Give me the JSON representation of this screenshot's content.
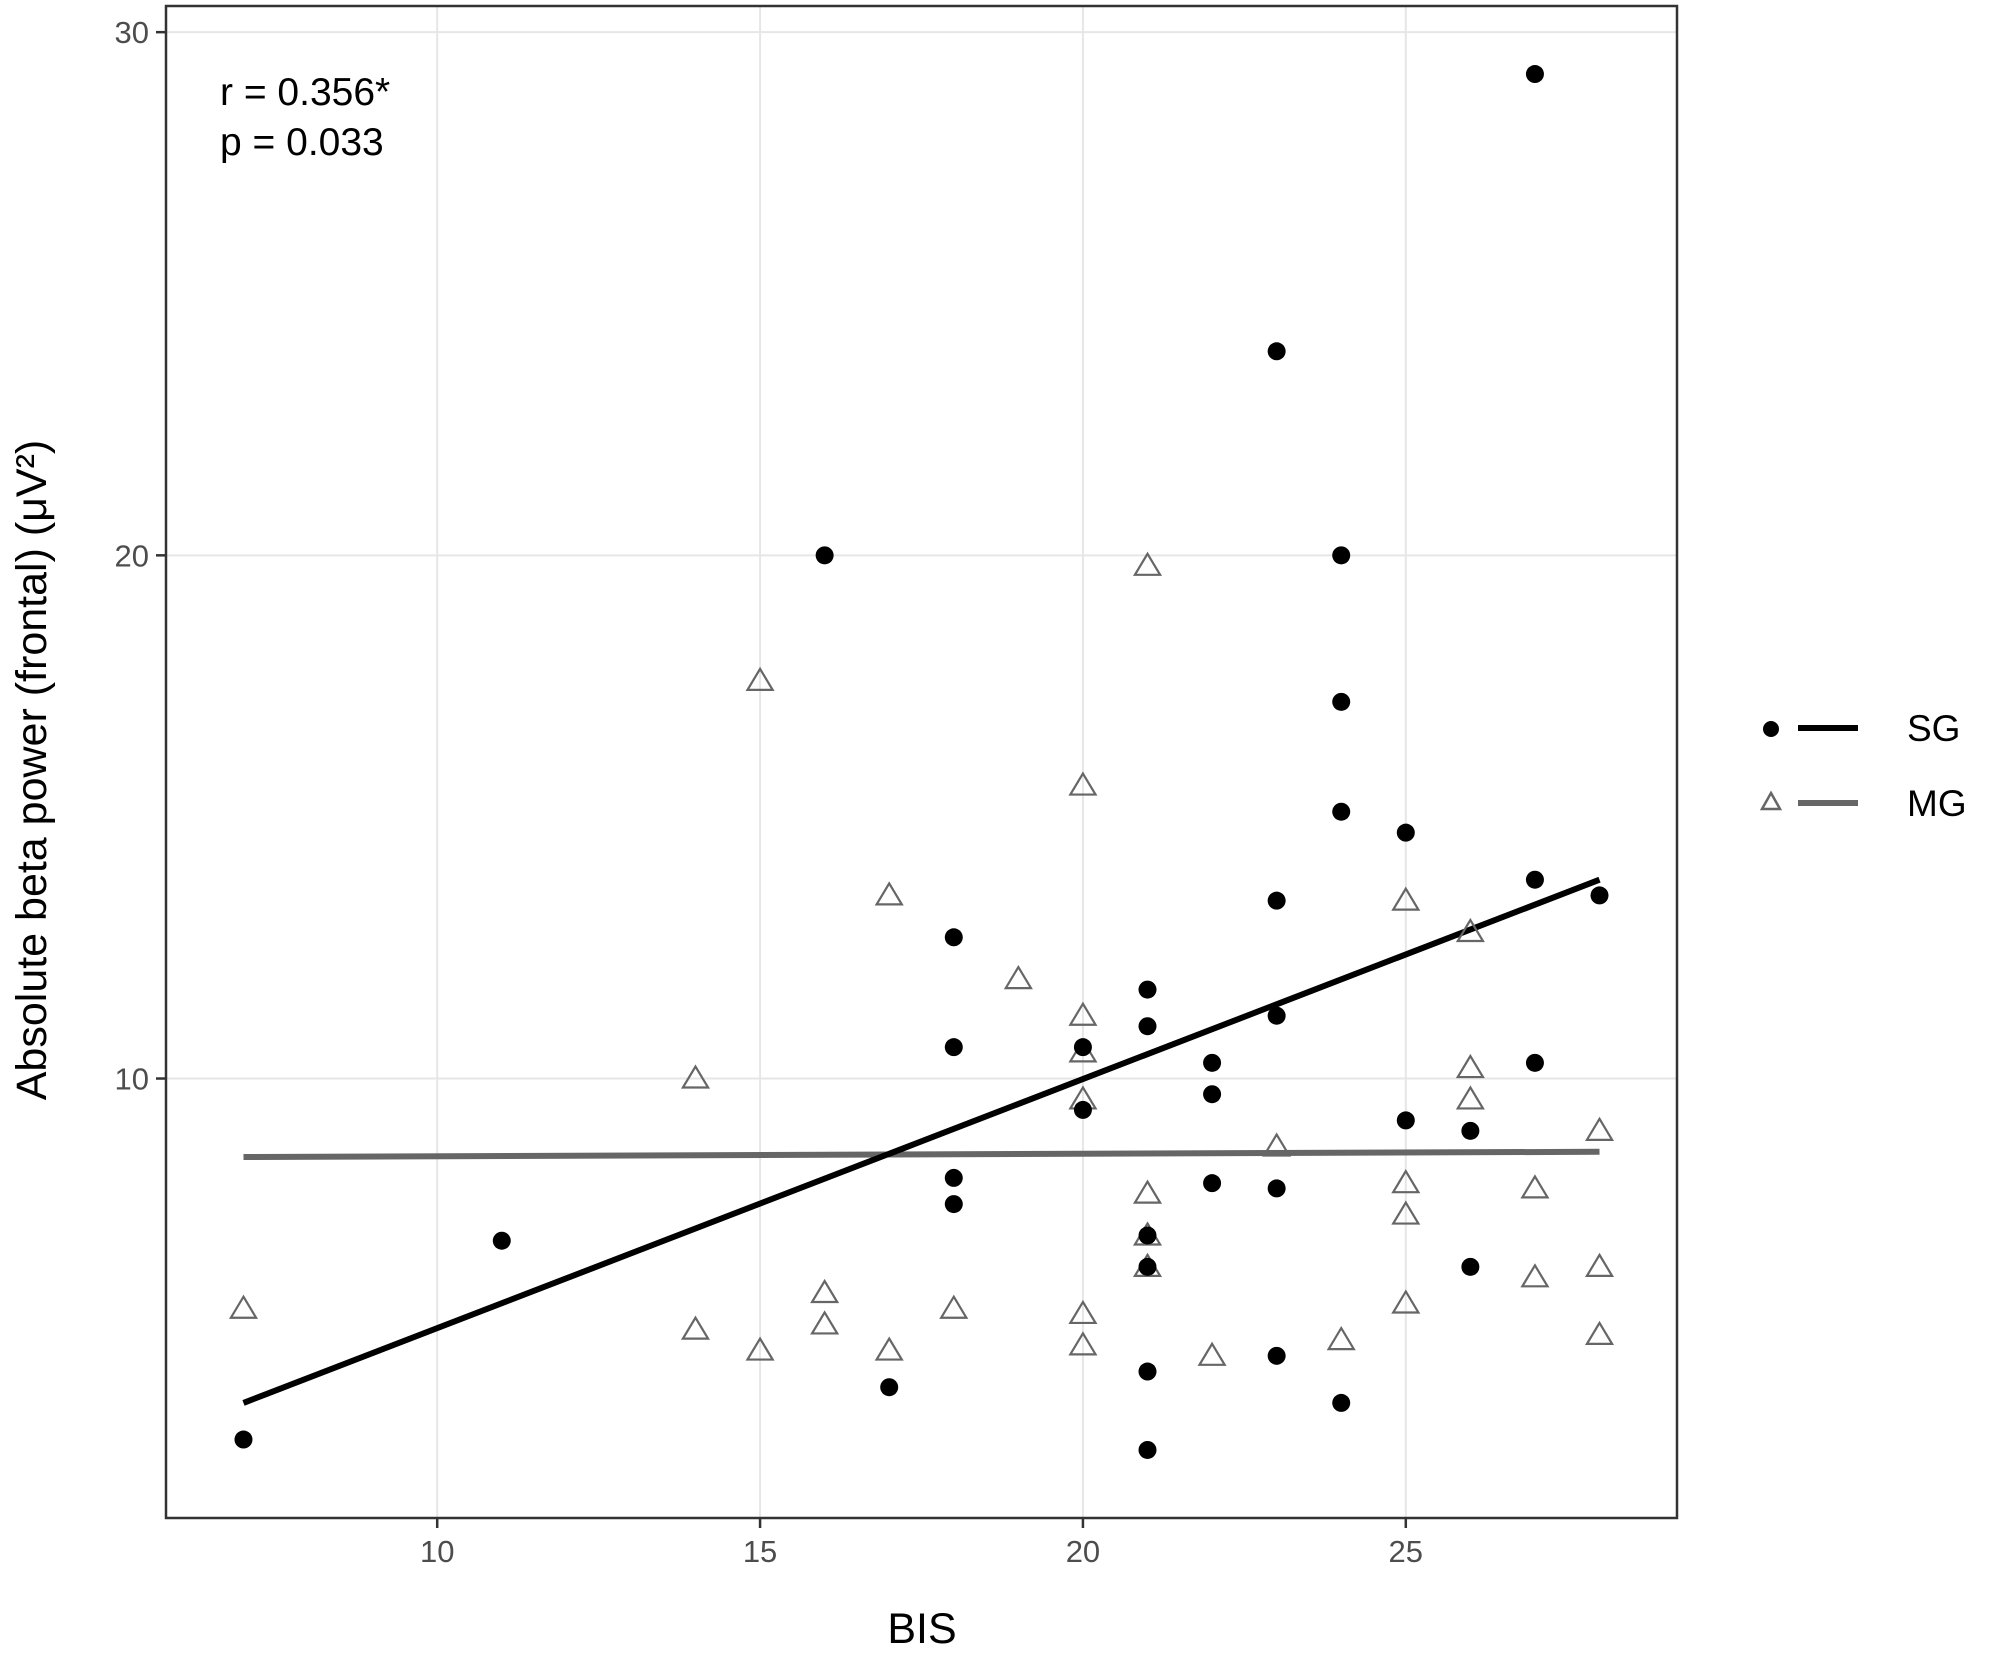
{
  "chart_data": {
    "type": "scatter",
    "xlabel": "BIS",
    "ylabel": "Absolute beta power (frontal) (μV²)",
    "xlim": [
      5.8,
      29.2
    ],
    "ylim": [
      1.6,
      30.5
    ],
    "x_ticks": [
      10,
      15,
      20,
      25
    ],
    "y_ticks": [
      10,
      20,
      30
    ],
    "grid": true,
    "legend_position": "right",
    "annotations": [
      "r = 0.356*",
      "p = 0.033"
    ],
    "colors": {
      "SG": "#000000",
      "MG": "#666666",
      "grid": "#e6e6e6",
      "border": "#333333"
    },
    "series": [
      {
        "name": "SG",
        "marker": "filled-circle",
        "points": [
          [
            7,
            3.1
          ],
          [
            11,
            6.9
          ],
          [
            16,
            20.0
          ],
          [
            17,
            4.1
          ],
          [
            18,
            12.7
          ],
          [
            18,
            10.6
          ],
          [
            18,
            8.1
          ],
          [
            18,
            7.6
          ],
          [
            20,
            10.6
          ],
          [
            20,
            9.4
          ],
          [
            21,
            11.7
          ],
          [
            21,
            11.0
          ],
          [
            21,
            7.0
          ],
          [
            21,
            6.4
          ],
          [
            21,
            4.4
          ],
          [
            21,
            2.9
          ],
          [
            22,
            10.3
          ],
          [
            22,
            9.7
          ],
          [
            22,
            8.0
          ],
          [
            23,
            23.9
          ],
          [
            23,
            13.4
          ],
          [
            23,
            11.2
          ],
          [
            23,
            7.9
          ],
          [
            23,
            4.7
          ],
          [
            24,
            20.0
          ],
          [
            24,
            17.2
          ],
          [
            24,
            15.1
          ],
          [
            24,
            3.8
          ],
          [
            25,
            14.7
          ],
          [
            25,
            9.2
          ],
          [
            26,
            9.0
          ],
          [
            26,
            6.4
          ],
          [
            27,
            29.2
          ],
          [
            27,
            13.8
          ],
          [
            27,
            10.3
          ],
          [
            28,
            13.5
          ]
        ],
        "fit": [
          [
            7,
            3.8
          ],
          [
            28,
            13.8
          ]
        ]
      },
      {
        "name": "MG",
        "marker": "open-triangle",
        "points": [
          [
            7,
            5.6
          ],
          [
            14,
            10.0
          ],
          [
            14,
            5.2
          ],
          [
            15,
            17.6
          ],
          [
            15,
            4.8
          ],
          [
            16,
            5.9
          ],
          [
            16,
            5.3
          ],
          [
            17,
            13.5
          ],
          [
            17,
            4.8
          ],
          [
            18,
            5.6
          ],
          [
            19,
            11.9
          ],
          [
            20,
            15.6
          ],
          [
            20,
            11.2
          ],
          [
            20,
            10.5
          ],
          [
            20,
            9.6
          ],
          [
            20,
            5.5
          ],
          [
            20,
            4.9
          ],
          [
            21,
            19.8
          ],
          [
            21,
            7.8
          ],
          [
            21,
            7.0
          ],
          [
            21,
            6.4
          ],
          [
            22,
            4.7
          ],
          [
            23,
            8.7
          ],
          [
            24,
            5.0
          ],
          [
            25,
            13.4
          ],
          [
            25,
            8.0
          ],
          [
            25,
            7.4
          ],
          [
            25,
            5.7
          ],
          [
            26,
            12.8
          ],
          [
            26,
            10.2
          ],
          [
            26,
            9.6
          ],
          [
            27,
            7.9
          ],
          [
            27,
            6.2
          ],
          [
            28,
            9.0
          ],
          [
            28,
            6.4
          ],
          [
            28,
            5.1
          ]
        ],
        "fit": [
          [
            7,
            8.5
          ],
          [
            28,
            8.6
          ]
        ]
      }
    ]
  }
}
